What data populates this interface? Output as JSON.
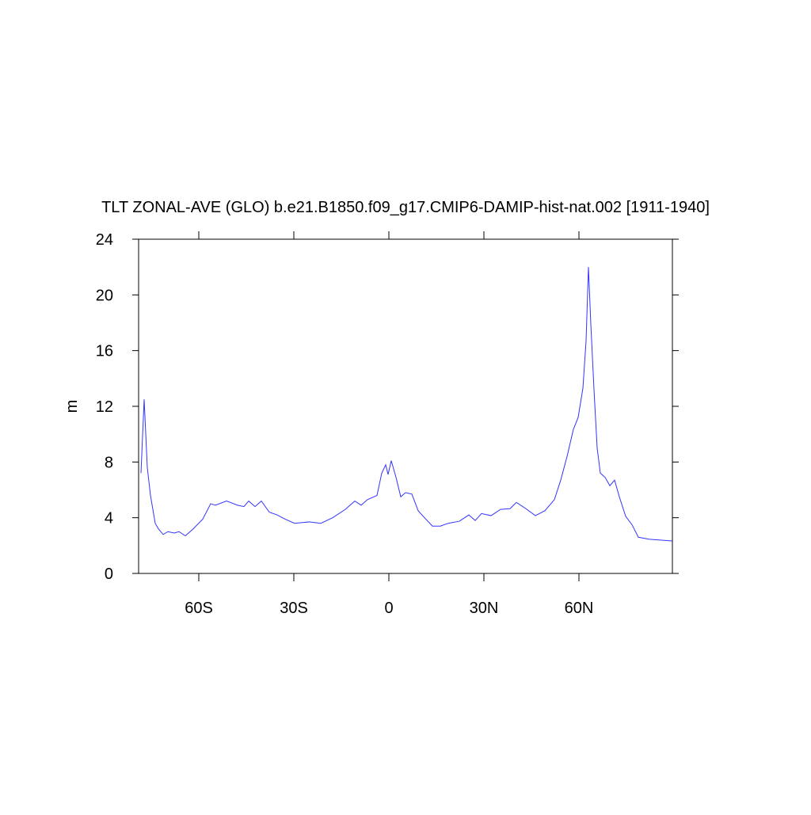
{
  "chart_data": {
    "type": "line",
    "title": "TLT ZONAL-AVE (GLO) b.e21.B1850.f09_g17.CMIP6-DAMIP-hist-nat.002 [1911-1940]",
    "ylabel": "m",
    "xlim": [
      -79,
      89.5
    ],
    "ylim": [
      0,
      24
    ],
    "xticks": [
      {
        "value": -60,
        "label": "60S"
      },
      {
        "value": -30,
        "label": "30S"
      },
      0,
      {
        "value": 30,
        "label": "30N"
      },
      {
        "value": 60,
        "label": "60N"
      }
    ],
    "yticks": [
      0,
      4,
      8,
      12,
      16,
      20,
      24
    ],
    "x": [
      -78.25,
      -77.25,
      -76.25,
      -75.25,
      -73.75,
      -72.75,
      -71.25,
      -69.75,
      -67.75,
      -66.25,
      -64.25,
      -61.75,
      -58.75,
      -56.25,
      -54.75,
      -51.25,
      -47.75,
      -45.75,
      -44.25,
      -42.25,
      -40.25,
      -37.75,
      -35.25,
      -32.75,
      -29.75,
      -25.25,
      -21.5,
      -17.75,
      -13.75,
      -10.75,
      -8.75,
      -6.75,
      -3.75,
      -2.25,
      -1,
      -0.25,
      0.75,
      2.25,
      3.75,
      5.25,
      7.25,
      9.25,
      11.25,
      13.75,
      16.25,
      18.75,
      22.25,
      25.25,
      27.25,
      29.25,
      32.25,
      35.25,
      38.25,
      40.25,
      43.25,
      46.25,
      49.25,
      52.25,
      54.25,
      56.25,
      58.25,
      59.75,
      61.25,
      62.25,
      63,
      63.75,
      64.75,
      65.75,
      66.75,
      68.25,
      69.75,
      71.25,
      72.75,
      74.75,
      76.75,
      78.75,
      82.25,
      89.5
    ],
    "series": [
      {
        "name": "TLT",
        "color": "#3333ff",
        "values": [
          7.2,
          12.5,
          7.6,
          5.6,
          3.6,
          3.2,
          2.8,
          3.0,
          2.9,
          3.0,
          2.7,
          3.2,
          3.9,
          5.0,
          4.9,
          5.2,
          4.9,
          4.8,
          5.2,
          4.8,
          5.2,
          4.4,
          4.2,
          3.9,
          3.6,
          3.7,
          3.6,
          4.0,
          4.6,
          5.2,
          4.9,
          5.3,
          5.6,
          7.2,
          7.8,
          7.1,
          8.1,
          6.9,
          5.5,
          5.8,
          5.7,
          4.5,
          4.0,
          3.4,
          3.4,
          3.6,
          3.75,
          4.2,
          3.8,
          4.3,
          4.15,
          4.6,
          4.65,
          5.1,
          4.65,
          4.15,
          4.5,
          5.3,
          6.7,
          8.4,
          10.35,
          11.2,
          13.3,
          16.7,
          22.0,
          17.9,
          13.2,
          9.0,
          7.2,
          6.9,
          6.3,
          6.7,
          5.5,
          4.1,
          3.5,
          2.6,
          2.45,
          2.33
        ]
      }
    ]
  }
}
